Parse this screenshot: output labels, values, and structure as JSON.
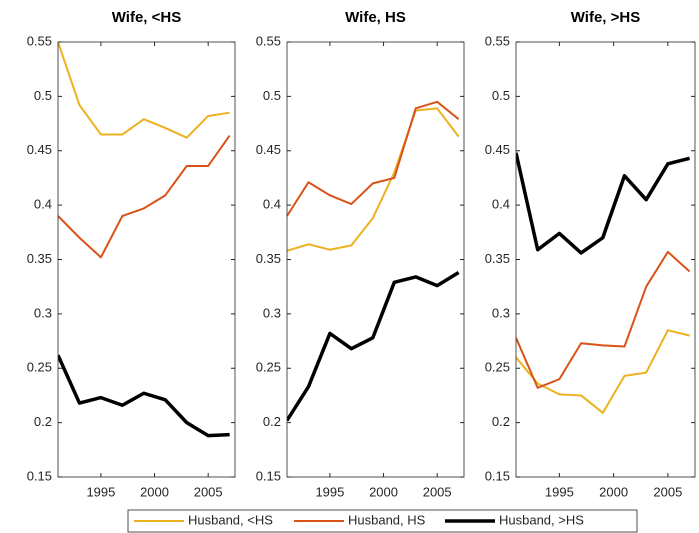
{
  "chart_data": [
    {
      "type": "line",
      "title": "Wife, <HS",
      "x": [
        1991,
        1993,
        1995,
        1997,
        1999,
        2001,
        2003,
        2005,
        2007
      ],
      "xlim": [
        1991,
        2007.5
      ],
      "xticks": [
        1995,
        2000,
        2005
      ],
      "ylim": [
        0.15,
        0.55
      ],
      "yticks": [
        0.15,
        0.2,
        0.25,
        0.3,
        0.35,
        0.4,
        0.45,
        0.5,
        0.55
      ],
      "legend": "bottom",
      "series": [
        {
          "name": "Husband, <HS",
          "color": "#EDB120",
          "values": [
            0.55,
            0.492,
            0.465,
            0.465,
            0.479,
            0.471,
            0.462,
            0.482,
            0.485
          ]
        },
        {
          "name": "Husband, HS",
          "color": "#D95319",
          "values": [
            0.39,
            0.37,
            0.352,
            0.39,
            0.397,
            0.409,
            0.436,
            0.436,
            0.464
          ]
        },
        {
          "name": "Husband, >HS",
          "color": "#000000",
          "values": [
            0.262,
            0.218,
            0.223,
            0.216,
            0.227,
            0.221,
            0.2,
            0.188,
            0.189
          ]
        }
      ]
    },
    {
      "type": "line",
      "title": "Wife, HS",
      "x": [
        1991,
        1993,
        1995,
        1997,
        1999,
        2001,
        2003,
        2005,
        2007
      ],
      "xlim": [
        1991,
        2007.5
      ],
      "xticks": [
        1995,
        2000,
        2005
      ],
      "ylim": [
        0.15,
        0.55
      ],
      "yticks": [
        0.15,
        0.2,
        0.25,
        0.3,
        0.35,
        0.4,
        0.45,
        0.5,
        0.55
      ],
      "series": [
        {
          "name": "Husband, <HS",
          "color": "#EDB120",
          "values": [
            0.358,
            0.364,
            0.359,
            0.363,
            0.388,
            0.43,
            0.487,
            0.489,
            0.463
          ]
        },
        {
          "name": "Husband, HS",
          "color": "#D95319",
          "values": [
            0.39,
            0.421,
            0.409,
            0.401,
            0.42,
            0.425,
            0.489,
            0.495,
            0.479
          ]
        },
        {
          "name": "Husband, >HS",
          "color": "#000000",
          "values": [
            0.202,
            0.233,
            0.282,
            0.268,
            0.278,
            0.329,
            0.334,
            0.326,
            0.338
          ]
        }
      ]
    },
    {
      "type": "line",
      "title": "Wife, >HS",
      "x": [
        1991,
        1993,
        1995,
        1997,
        1999,
        2001,
        2003,
        2005,
        2007
      ],
      "xlim": [
        1991,
        2007.5
      ],
      "xticks": [
        1995,
        2000,
        2005
      ],
      "ylim": [
        0.15,
        0.55
      ],
      "yticks": [
        0.15,
        0.2,
        0.25,
        0.3,
        0.35,
        0.4,
        0.45,
        0.5,
        0.55
      ],
      "series": [
        {
          "name": "Husband, <HS",
          "color": "#EDB120",
          "values": [
            0.26,
            0.236,
            0.226,
            0.225,
            0.209,
            0.243,
            0.246,
            0.285,
            0.28
          ]
        },
        {
          "name": "Husband, HS",
          "color": "#D95319",
          "values": [
            0.278,
            0.232,
            0.24,
            0.273,
            0.271,
            0.27,
            0.325,
            0.357,
            0.339
          ]
        },
        {
          "name": "Husband, >HS",
          "color": "#000000",
          "values": [
            0.448,
            0.359,
            0.374,
            0.356,
            0.37,
            0.427,
            0.405,
            0.438,
            0.443
          ]
        }
      ]
    }
  ]
}
